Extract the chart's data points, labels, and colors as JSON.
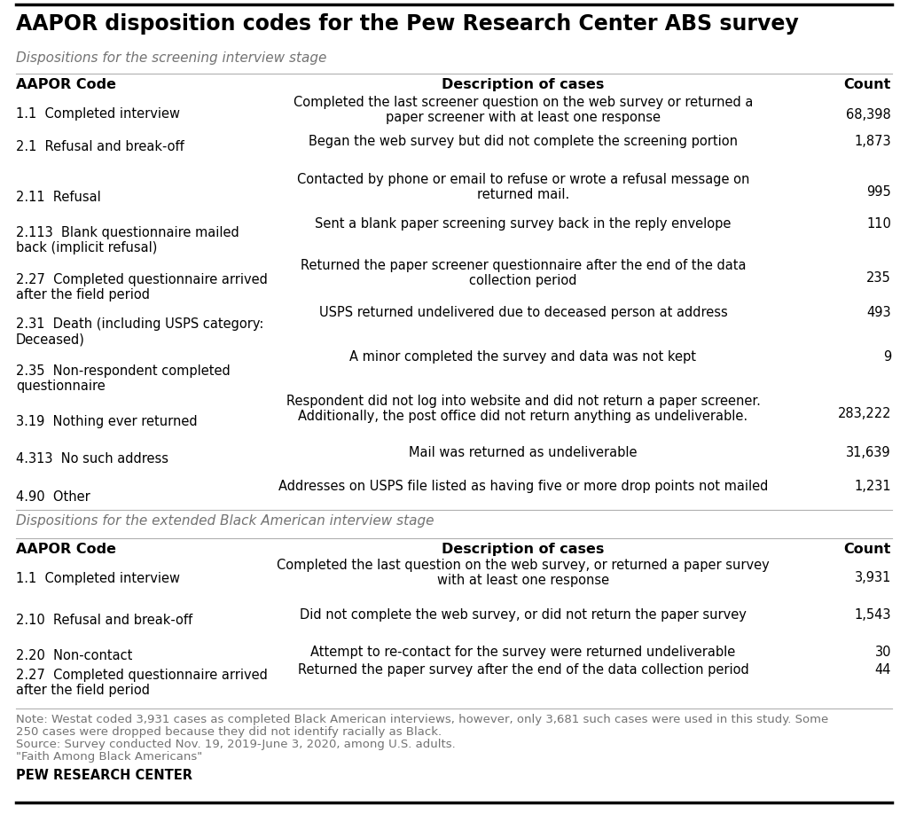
{
  "title": "AAPOR disposition codes for the Pew Research Center ABS survey",
  "section1_subtitle": "Dispositions for the screening interview stage",
  "section2_subtitle": "Dispositions for the extended Black American interview stage",
  "col_headers": [
    "AAPOR Code",
    "Description of cases",
    "Count"
  ],
  "section1_rows": [
    {
      "code": "1.1  Completed interview",
      "description": "Completed the last screener question on the web survey or returned a\npaper screener with at least one response",
      "count": "68,398"
    },
    {
      "code": "2.1  Refusal and break-off",
      "description": "Began the web survey but did not complete the screening portion",
      "count": "1,873"
    },
    {
      "code": "2.11  Refusal",
      "description": "Contacted by phone or email to refuse or wrote a refusal message on\nreturned mail.",
      "count": "995"
    },
    {
      "code": "2.113  Blank questionnaire mailed\nback (implicit refusal)",
      "description": "Sent a blank paper screening survey back in the reply envelope",
      "count": "110"
    },
    {
      "code": "2.27  Completed questionnaire arrived\nafter the field period",
      "description": "Returned the paper screener questionnaire after the end of the data\ncollection period",
      "count": "235"
    },
    {
      "code": "2.31  Death (including USPS category:\nDeceased)",
      "description": "USPS returned undelivered due to deceased person at address",
      "count": "493"
    },
    {
      "code": "2.35  Non-respondent completed\nquestionnaire",
      "description": "A minor completed the survey and data was not kept",
      "count": "9"
    },
    {
      "code": "3.19  Nothing ever returned",
      "description": "Respondent did not log into website and did not return a paper screener.\nAdditionally, the post office did not return anything as undeliverable.",
      "count": "283,222"
    },
    {
      "code": "4.313  No such address",
      "description": "Mail was returned as undeliverable",
      "count": "31,639"
    },
    {
      "code": "4.90  Other",
      "description": "Addresses on USPS file listed as having five or more drop points not mailed",
      "count": "1,231"
    }
  ],
  "section2_rows": [
    {
      "code": "1.1  Completed interview",
      "description": "Completed the last question on the web survey, or returned a paper survey\nwith at least one response",
      "count": "3,931"
    },
    {
      "code": "2.10  Refusal and break-off",
      "description": "Did not complete the web survey, or did not return the paper survey",
      "count": "1,543"
    },
    {
      "code": "2.20  Non-contact",
      "description": "Attempt to re-contact for the survey were returned undeliverable",
      "count": "30"
    },
    {
      "code": "2.27  Completed questionnaire arrived\nafter the field period",
      "description": "Returned the paper survey after the end of the data collection period",
      "count": "44"
    }
  ],
  "note_lines": [
    "Note: Westat coded 3,931 cases as completed Black American interviews, however, only 3,681 such cases were used in this study. Some",
    "250 cases were dropped because they did not identify racially as Black.",
    "Source: Survey conducted Nov. 19, 2019-June 3, 2020, among U.S. adults.",
    "\"Faith Among Black Americans\""
  ],
  "footer": "PEW RESEARCH CENTER",
  "bg_color": "#ffffff",
  "title_color": "#000000",
  "subtitle_color": "#737373",
  "header_color": "#000000",
  "text_color": "#000000",
  "note_color": "#737373",
  "footer_color": "#000000",
  "top_line_color": "#000000",
  "divider_color": "#b0b0b0"
}
